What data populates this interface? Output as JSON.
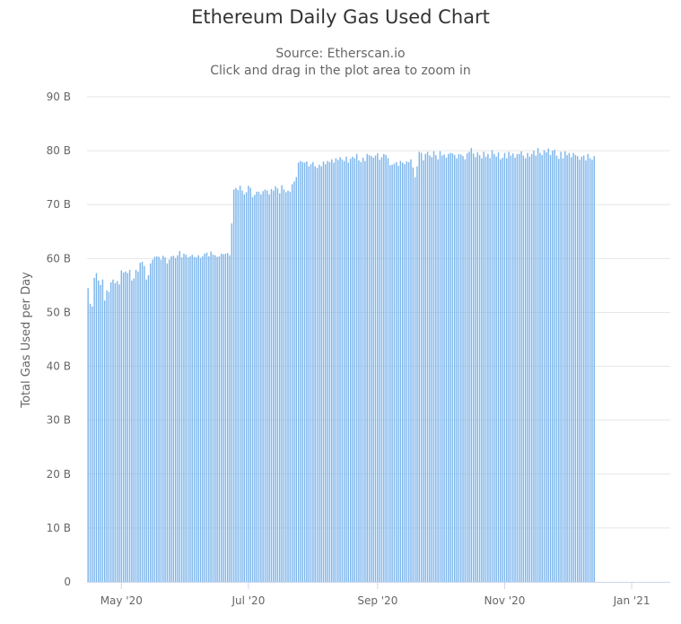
{
  "chart_data": {
    "type": "bar",
    "title": "Ethereum Daily Gas Used Chart",
    "subtitle": "Source: Etherscan.io",
    "zoom_hint": "Click and drag in the plot area to zoom in",
    "xlabel": "",
    "ylabel": "Total Gas Used per Day",
    "ylim": [
      0,
      90
    ],
    "y_unit": "B",
    "y_ticks": [
      "0",
      "10 B",
      "20 B",
      "30 B",
      "40 B",
      "50 B",
      "60 B",
      "70 B",
      "80 B",
      "90 B"
    ],
    "x_start": "2020-04-15",
    "x_end": "2021-01-19",
    "x_ticks": [
      {
        "date": "2020-05-01",
        "label": "May '20"
      },
      {
        "date": "2020-07-01",
        "label": "Jul '20"
      },
      {
        "date": "2020-09-01",
        "label": "Sep '20"
      },
      {
        "date": "2020-11-01",
        "label": "Nov '20"
      },
      {
        "date": "2021-01-01",
        "label": "Jan '21"
      }
    ],
    "series": [
      {
        "color": "#7cb5ec",
        "values": [
          54.5,
          51.6,
          51.1,
          56.4,
          57.3,
          55.9,
          55.1,
          56.1,
          52.2,
          54.1,
          53.8,
          55.6,
          56.1,
          55.4,
          55.8,
          55.2,
          57.8,
          57.4,
          57.6,
          57.3,
          57.9,
          55.9,
          56.3,
          57.9,
          57.6,
          59.2,
          59.4,
          58.6,
          56.1,
          56.9,
          59.1,
          59.8,
          60.3,
          60.4,
          60.3,
          59.8,
          60.5,
          60.2,
          59.1,
          59.8,
          60.4,
          60.5,
          60.1,
          60.6,
          61.4,
          60.2,
          60.9,
          60.7,
          60.2,
          60.4,
          60.7,
          60.3,
          60.2,
          60.6,
          60.1,
          60.4,
          60.9,
          61.1,
          60.4,
          61.3,
          60.7,
          60.6,
          60.3,
          60.4,
          60.9,
          60.8,
          60.9,
          61.0,
          60.6,
          66.5,
          72.8,
          73.1,
          72.7,
          73.5,
          72.6,
          71.9,
          72.3,
          73.5,
          73.1,
          71.4,
          71.8,
          72.4,
          72.4,
          71.9,
          72.5,
          72.8,
          72.6,
          71.9,
          72.9,
          72.6,
          73.4,
          73.0,
          72.1,
          73.6,
          72.8,
          72.3,
          72.6,
          72.4,
          73.8,
          74.3,
          75.1,
          77.8,
          78.1,
          77.9,
          77.8,
          78.0,
          77.1,
          77.5,
          77.9,
          77.1,
          76.8,
          77.4,
          77.1,
          78.0,
          77.5,
          78.1,
          77.9,
          78.4,
          77.8,
          78.6,
          78.3,
          78.8,
          78.4,
          78.1,
          78.9,
          77.8,
          78.5,
          78.9,
          78.6,
          79.4,
          78.2,
          77.9,
          78.7,
          78.1,
          79.4,
          79.2,
          79.0,
          78.7,
          79.1,
          79.5,
          78.3,
          78.8,
          79.4,
          79.2,
          78.6,
          77.3,
          77.4,
          77.6,
          77.9,
          77.2,
          78.1,
          77.8,
          77.5,
          78.0,
          77.9,
          78.4,
          76.9,
          75.1,
          77.1,
          79.8,
          79.6,
          78.2,
          79.4,
          79.8,
          79.1,
          78.8,
          79.9,
          79.2,
          78.4,
          79.9,
          79.1,
          79.3,
          78.7,
          79.4,
          79.6,
          79.5,
          79.2,
          78.6,
          79.4,
          79.3,
          79.0,
          78.4,
          79.5,
          79.8,
          80.5,
          79.5,
          78.8,
          79.7,
          79.2,
          78.6,
          79.8,
          78.9,
          79.4,
          78.6,
          80.1,
          79.4,
          78.9,
          79.7,
          78.4,
          78.7,
          79.6,
          78.6,
          79.8,
          79.1,
          79.5,
          78.7,
          79.4,
          79.4,
          79.9,
          79.1,
          78.6,
          79.6,
          78.9,
          79.4,
          80.0,
          79.1,
          80.5,
          79.6,
          79.2,
          80.1,
          79.7,
          80.4,
          79.2,
          80.0,
          80.2,
          79.1,
          78.5,
          79.8,
          78.6,
          79.9,
          79.2,
          79.6,
          78.8,
          79.6,
          79.2,
          79.0,
          78.3,
          78.9,
          79.1,
          78.2,
          79.4,
          78.6,
          78.3,
          79.0
        ]
      }
    ]
  }
}
